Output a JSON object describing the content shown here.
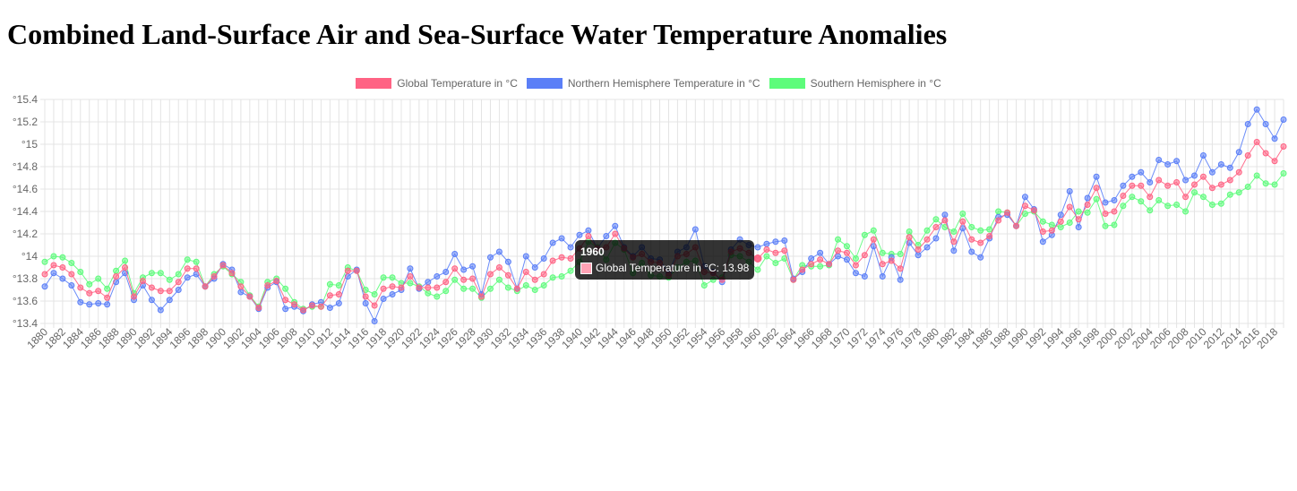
{
  "page": {
    "title": "Combined Land-Surface Air and Sea-Surface Water Temperature Anomalies"
  },
  "colors": {
    "global": "#ff6384",
    "north": "#5b7ff7",
    "south": "#5dfc7b",
    "grid": "#e4e4e4"
  },
  "chart_data": {
    "type": "line",
    "ylim": [
      13.4,
      15.4
    ],
    "yticks": [
      "°13.4",
      "°13.6",
      "°13.8",
      "°14",
      "°14.2",
      "°14.4",
      "°14.6",
      "°14.8",
      "°15",
      "°15.2",
      "°15.4"
    ],
    "x": [
      1880,
      1881,
      1882,
      1883,
      1884,
      1885,
      1886,
      1887,
      1888,
      1889,
      1890,
      1891,
      1892,
      1893,
      1894,
      1895,
      1896,
      1897,
      1898,
      1899,
      1900,
      1901,
      1902,
      1903,
      1904,
      1905,
      1906,
      1907,
      1908,
      1909,
      1910,
      1911,
      1912,
      1913,
      1914,
      1915,
      1916,
      1917,
      1918,
      1919,
      1920,
      1921,
      1922,
      1923,
      1924,
      1925,
      1926,
      1927,
      1928,
      1929,
      1930,
      1931,
      1932,
      1933,
      1934,
      1935,
      1936,
      1937,
      1938,
      1939,
      1940,
      1941,
      1942,
      1943,
      1944,
      1945,
      1946,
      1947,
      1948,
      1949,
      1950,
      1951,
      1952,
      1953,
      1954,
      1955,
      1956,
      1957,
      1958,
      1959,
      1960,
      1961,
      1962,
      1963,
      1964,
      1965,
      1966,
      1967,
      1968,
      1969,
      1970,
      1971,
      1972,
      1973,
      1974,
      1975,
      1976,
      1977,
      1978,
      1979,
      1980,
      1981,
      1982,
      1983,
      1984,
      1985,
      1986,
      1987,
      1988,
      1989,
      1990,
      1991,
      1992,
      1993,
      1994,
      1995,
      1996,
      1997,
      1998,
      1999,
      2000,
      2001,
      2002,
      2003,
      2004,
      2005,
      2006,
      2007,
      2008,
      2009,
      2010,
      2011,
      2012,
      2013,
      2014,
      2015,
      2016,
      2017,
      2018,
      2019
    ],
    "xtick_labels": [
      "1880",
      "1882",
      "1884",
      "1886",
      "1888",
      "1890",
      "1892",
      "1894",
      "1896",
      "1898",
      "1900",
      "1902",
      "1904",
      "1906",
      "1908",
      "1910",
      "1912",
      "1914",
      "1916",
      "1918",
      "1920",
      "1922",
      "1924",
      "1926",
      "1928",
      "1930",
      "1932",
      "1934",
      "1936",
      "1938",
      "1940",
      "1942",
      "1944",
      "1946",
      "1948",
      "1950",
      "1952",
      "1954",
      "1956",
      "1958",
      "1960",
      "1962",
      "1964",
      "1966",
      "1968",
      "1970",
      "1972",
      "1974",
      "1976",
      "1978",
      "1980",
      "1982",
      "1984",
      "1986",
      "1988",
      "1990",
      "1992",
      "1994",
      "1996",
      "1998",
      "2000",
      "2002",
      "2004",
      "2006",
      "2008",
      "2010",
      "2012",
      "2014",
      "2016",
      "2018"
    ],
    "series": [
      {
        "name": "Global Temperature in °C",
        "key": "global",
        "values": [
          13.84,
          13.92,
          13.9,
          13.84,
          13.72,
          13.67,
          13.69,
          13.63,
          13.82,
          13.9,
          13.64,
          13.78,
          13.72,
          13.69,
          13.69,
          13.77,
          13.89,
          13.89,
          13.73,
          13.82,
          13.92,
          13.85,
          13.73,
          13.64,
          13.54,
          13.74,
          13.78,
          13.61,
          13.57,
          13.52,
          13.56,
          13.55,
          13.65,
          13.66,
          13.87,
          13.87,
          13.64,
          13.56,
          13.71,
          13.73,
          13.72,
          13.82,
          13.72,
          13.72,
          13.72,
          13.77,
          13.89,
          13.79,
          13.8,
          13.64,
          13.84,
          13.9,
          13.83,
          13.71,
          13.86,
          13.79,
          13.84,
          13.96,
          13.99,
          13.98,
          14.07,
          14.18,
          14.07,
          14.08,
          14.2,
          14.07,
          13.99,
          14.02,
          13.95,
          13.94,
          13.83,
          14.0,
          14.02,
          14.08,
          13.86,
          13.85,
          13.79,
          14.04,
          14.07,
          14.03,
          13.98,
          14.06,
          14.03,
          14.05,
          13.79,
          13.88,
          13.93,
          13.97,
          13.93,
          14.05,
          14.03,
          13.92,
          14.01,
          14.15,
          13.93,
          13.96,
          13.89,
          14.17,
          14.06,
          14.15,
          14.26,
          14.32,
          14.13,
          14.31,
          14.15,
          14.12,
          14.18,
          14.32,
          14.39,
          14.27,
          14.45,
          14.41,
          14.22,
          14.23,
          14.31,
          14.44,
          14.33,
          14.46,
          14.61,
          14.38,
          14.4,
          14.54,
          14.63,
          14.63,
          14.53,
          14.68,
          14.63,
          14.66,
          14.53,
          14.64,
          14.71,
          14.61,
          14.64,
          14.68,
          14.75,
          14.9,
          15.02,
          14.92,
          14.85,
          14.98
        ]
      },
      {
        "name": "Northern Hemisphere Temperature in °C",
        "key": "north",
        "values": [
          13.73,
          13.85,
          13.8,
          13.74,
          13.59,
          13.57,
          13.58,
          13.57,
          13.77,
          13.85,
          13.61,
          13.74,
          13.61,
          13.52,
          13.61,
          13.7,
          13.81,
          13.84,
          13.73,
          13.8,
          13.93,
          13.88,
          13.68,
          13.64,
          13.53,
          13.72,
          13.77,
          13.53,
          13.55,
          13.51,
          13.57,
          13.59,
          13.54,
          13.58,
          13.82,
          13.88,
          13.58,
          13.42,
          13.62,
          13.66,
          13.7,
          13.89,
          13.71,
          13.77,
          13.82,
          13.86,
          14.02,
          13.88,
          13.91,
          13.66,
          13.99,
          14.04,
          13.95,
          13.71,
          14.0,
          13.9,
          13.98,
          14.12,
          14.16,
          14.08,
          14.19,
          14.23,
          14.07,
          14.18,
          14.27,
          14.08,
          14.0,
          14.08,
          13.98,
          13.97,
          13.85,
          14.04,
          14.08,
          14.24,
          13.91,
          13.86,
          13.77,
          14.06,
          14.15,
          14.1,
          14.08,
          14.11,
          14.13,
          14.14,
          13.8,
          13.86,
          13.98,
          14.03,
          13.93,
          14.0,
          13.97,
          13.85,
          13.82,
          14.09,
          13.82,
          13.99,
          13.79,
          14.12,
          14.01,
          14.08,
          14.16,
          14.37,
          14.05,
          14.25,
          14.04,
          13.99,
          14.16,
          14.35,
          14.37,
          14.27,
          14.53,
          14.42,
          14.13,
          14.19,
          14.37,
          14.58,
          14.26,
          14.52,
          14.71,
          14.48,
          14.5,
          14.63,
          14.71,
          14.75,
          14.66,
          14.86,
          14.82,
          14.85,
          14.68,
          14.72,
          14.9,
          14.75,
          14.82,
          14.79,
          14.93,
          15.18,
          15.31,
          15.18,
          15.05,
          15.22
        ]
      },
      {
        "name": "Southern Hemisphere in °C",
        "key": "south",
        "values": [
          13.95,
          14.0,
          13.99,
          13.94,
          13.86,
          13.75,
          13.8,
          13.71,
          13.87,
          13.96,
          13.67,
          13.81,
          13.85,
          13.85,
          13.79,
          13.84,
          13.97,
          13.95,
          13.73,
          13.84,
          13.91,
          13.84,
          13.77,
          13.65,
          13.55,
          13.77,
          13.8,
          13.71,
          13.59,
          13.53,
          13.55,
          13.55,
          13.75,
          13.74,
          13.9,
          13.87,
          13.7,
          13.66,
          13.81,
          13.81,
          13.76,
          13.76,
          13.73,
          13.67,
          13.64,
          13.69,
          13.79,
          13.71,
          13.71,
          13.63,
          13.71,
          13.79,
          13.72,
          13.69,
          13.74,
          13.7,
          13.74,
          13.81,
          13.82,
          13.87,
          13.95,
          14.13,
          14.08,
          13.97,
          14.12,
          14.06,
          13.85,
          13.94,
          13.83,
          13.82,
          13.81,
          13.9,
          13.95,
          13.96,
          13.74,
          13.79,
          13.81,
          14.01,
          14.0,
          13.95,
          13.88,
          14.0,
          13.94,
          13.98,
          13.79,
          13.92,
          13.91,
          13.91,
          13.92,
          14.15,
          14.09,
          13.98,
          14.19,
          14.23,
          14.03,
          14.02,
          14.02,
          14.22,
          14.1,
          14.23,
          14.33,
          14.26,
          14.22,
          14.38,
          14.26,
          14.23,
          14.24,
          14.4,
          14.39,
          14.27,
          14.38,
          14.4,
          14.31,
          14.28,
          14.26,
          14.3,
          14.4,
          14.39,
          14.51,
          14.27,
          14.28,
          14.45,
          14.53,
          14.49,
          14.41,
          14.5,
          14.45,
          14.46,
          14.4,
          14.57,
          14.53,
          14.46,
          14.47,
          14.55,
          14.57,
          14.62,
          14.72,
          14.65,
          14.64,
          14.74
        ]
      }
    ],
    "tooltip": {
      "title": "1960",
      "label": "Global Temperature in °C: 13.98"
    }
  }
}
